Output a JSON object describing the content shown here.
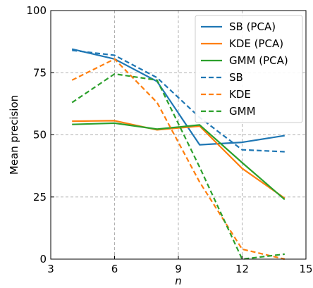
{
  "chart_data": {
    "type": "line",
    "xlabel": "n",
    "ylabel": "Mean precision",
    "xlim": [
      3,
      15
    ],
    "ylim": [
      0,
      100
    ],
    "xticks": [
      3,
      6,
      9,
      12,
      15
    ],
    "yticks": [
      0,
      25,
      50,
      75,
      100
    ],
    "grid": true,
    "legend_position": "top-right",
    "series": [
      {
        "name": "SB (PCA)",
        "color": "#1f77b4",
        "style": "solid",
        "x": [
          4,
          6,
          8,
          10,
          12,
          14
        ],
        "values": [
          84.5,
          80.5,
          71.5,
          46.0,
          47.0,
          49.7
        ]
      },
      {
        "name": "KDE (PCA)",
        "color": "#ff7f0e",
        "style": "solid",
        "x": [
          4,
          6,
          8,
          10,
          12,
          14
        ],
        "values": [
          55.5,
          55.7,
          52.0,
          53.5,
          36.5,
          24.5
        ]
      },
      {
        "name": "GMM (PCA)",
        "color": "#2ca02c",
        "style": "solid",
        "x": [
          4,
          6,
          8,
          10,
          12,
          14
        ],
        "values": [
          54.2,
          54.7,
          52.3,
          54.0,
          38.8,
          24.0
        ]
      },
      {
        "name": "SB",
        "color": "#1f77b4",
        "style": "dashed",
        "x": [
          4,
          6,
          8,
          10,
          12,
          14
        ],
        "values": [
          84.0,
          82.0,
          73.0,
          57.0,
          44.0,
          43.2
        ]
      },
      {
        "name": "KDE",
        "color": "#ff7f0e",
        "style": "dashed",
        "x": [
          4,
          6,
          8,
          10,
          12,
          14
        ],
        "values": [
          72.0,
          80.5,
          63.0,
          31.0,
          4.0,
          0.0
        ]
      },
      {
        "name": "GMM",
        "color": "#2ca02c",
        "style": "dashed",
        "x": [
          4,
          6,
          8,
          10,
          12,
          14
        ],
        "values": [
          63.0,
          74.5,
          72.0,
          37.0,
          0.0,
          2.0
        ]
      }
    ]
  }
}
